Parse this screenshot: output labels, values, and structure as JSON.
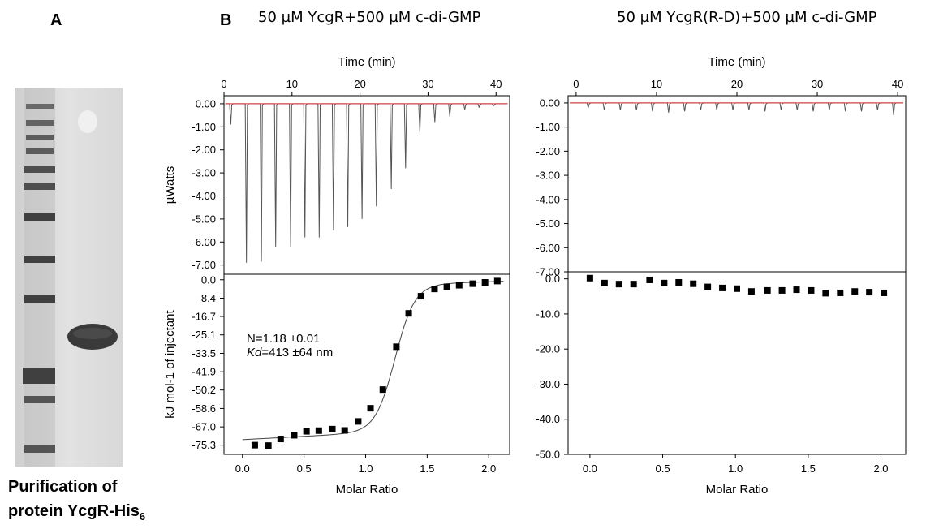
{
  "panel_a": {
    "letter": "A",
    "caption_line1": "Purification of",
    "caption_line2_main": "protein YcgR-His",
    "caption_line2_sub": "6"
  },
  "panel_b": {
    "letter": "B"
  },
  "colors": {
    "raw_trace": "#555555",
    "baseline": "#e03030",
    "points": "#000000",
    "fit": "#444444"
  },
  "chart_data": [
    {
      "type": "line",
      "title": "50 µM YcgR+500 µM c-di-GMP",
      "top": {
        "xlabel": "Time (min)",
        "ylabel": "µWatts",
        "xlim": [
          0,
          42
        ],
        "ylim": [
          -7.4,
          0.35
        ],
        "xticks": [
          0,
          10,
          20,
          30,
          40
        ],
        "ytick_labels": [
          "0.00",
          "-1.00",
          "-2.00",
          "-3.00",
          "-4.00",
          "-5.00",
          "-6.00",
          "-7.00"
        ],
        "yticks": [
          0,
          -1,
          -2,
          -3,
          -4,
          -5,
          -6,
          -7
        ],
        "injection_times": [
          1,
          3.3,
          5.5,
          7.6,
          9.8,
          11.9,
          14.0,
          16.1,
          18.2,
          20.3,
          22.4,
          24.6,
          26.7,
          28.8,
          31.0,
          33.2,
          35.4,
          37.5,
          39.6
        ],
        "peak_minima": [
          -0.9,
          -6.9,
          -6.85,
          -6.2,
          -6.2,
          -5.8,
          -5.8,
          -5.5,
          -5.35,
          -5.0,
          -4.45,
          -3.7,
          -2.8,
          -1.25,
          -0.8,
          -0.55,
          -0.25,
          -0.15,
          -0.1
        ]
      },
      "bottom": {
        "type": "scatter",
        "xlabel": "Molar Ratio",
        "ylabel": "kJ mol-1 of injectant",
        "xlim": [
          -0.15,
          2.17
        ],
        "ylim": [
          -79.5,
          2.5
        ],
        "xticks": [
          0.0,
          0.5,
          1.0,
          1.5,
          2.0
        ],
        "xtick_labels": [
          "0.0",
          "0.5",
          "1.0",
          "1.5",
          "2.0"
        ],
        "yticks": [
          0.0,
          -8.4,
          -16.7,
          -25.1,
          -33.5,
          -41.9,
          -50.2,
          -58.6,
          -67.0,
          -75.3
        ],
        "ytick_labels": [
          "0.0",
          "-8.4",
          "-16.7",
          "-25.1",
          "-33.5",
          "-41.9",
          "-50.2",
          "-58.6",
          "-67.0",
          "-75.3"
        ],
        "x": [
          0.1,
          0.21,
          0.31,
          0.42,
          0.52,
          0.62,
          0.73,
          0.83,
          0.94,
          1.04,
          1.14,
          1.25,
          1.35,
          1.45,
          1.56,
          1.66,
          1.76,
          1.87,
          1.97,
          2.07
        ],
        "y": [
          -75.3,
          -75.5,
          -72.5,
          -70.8,
          -69.0,
          -68.7,
          -68.0,
          -68.6,
          -64.5,
          -58.5,
          -50.0,
          -30.5,
          -15.3,
          -7.5,
          -4.2,
          -3.2,
          -2.5,
          -1.8,
          -1.2,
          -0.6
        ],
        "annotation_n": "N=1.18 ±0.01",
        "annotation_kd_label": "Kd",
        "annotation_kd_value": "=413 ±64 nm",
        "fit_line": true
      }
    },
    {
      "type": "line",
      "title": "50 µM YcgR(R-D)+500 µM c-di-GMP",
      "top": {
        "xlabel": "Time (min)",
        "xlim": [
          -1,
          41
        ],
        "ylim": [
          -7.0,
          0.3
        ],
        "xticks": [
          0,
          10,
          20,
          30,
          40
        ],
        "ytick_labels": [
          "0.00",
          "-1.00",
          "-2.00",
          "-3.00",
          "-4.00",
          "-5.00",
          "-6.00",
          "-7.00"
        ],
        "yticks": [
          0,
          -1,
          -2,
          -3,
          -4,
          -5,
          -6,
          -7
        ],
        "injection_times": [
          1.5,
          3.5,
          5.5,
          7.5,
          9.5,
          11.5,
          13.5,
          15.5,
          17.5,
          19.5,
          21.5,
          23.5,
          25.5,
          27.5,
          29.5,
          31.5,
          33.5,
          35.5,
          37.5,
          39.5
        ],
        "peak_minima": [
          -0.2,
          -0.3,
          -0.3,
          -0.3,
          -0.35,
          -0.4,
          -0.35,
          -0.3,
          -0.3,
          -0.3,
          -0.3,
          -0.35,
          -0.3,
          -0.3,
          -0.35,
          -0.3,
          -0.35,
          -0.35,
          -0.3,
          -0.5
        ]
      },
      "bottom": {
        "type": "scatter",
        "xlabel": "Molar Ratio",
        "xlim": [
          -0.15,
          2.17
        ],
        "ylim": [
          -50.0,
          2.0
        ],
        "xticks": [
          0.0,
          0.5,
          1.0,
          1.5,
          2.0
        ],
        "xtick_labels": [
          "0.0",
          "0.5",
          "1.0",
          "1.5",
          "2.0"
        ],
        "yticks": [
          0,
          -10,
          -20,
          -30,
          -40,
          -50
        ],
        "ytick_labels": [
          "0.0",
          "-10.0",
          "-20.0",
          "-30.0",
          "-40.0",
          "-50.0"
        ],
        "x": [
          0.0,
          0.1,
          0.2,
          0.3,
          0.41,
          0.51,
          0.61,
          0.71,
          0.81,
          0.91,
          1.01,
          1.11,
          1.22,
          1.32,
          1.42,
          1.52,
          1.62,
          1.72,
          1.82,
          1.92,
          2.02
        ],
        "y": [
          0.2,
          -1.2,
          -1.5,
          -1.5,
          -0.3,
          -1.2,
          -1.0,
          -1.4,
          -2.3,
          -2.6,
          -2.8,
          -3.6,
          -3.3,
          -3.3,
          -3.1,
          -3.3,
          -4.1,
          -4.0,
          -3.6,
          -3.8,
          -4.0
        ],
        "fit_line": false
      }
    }
  ]
}
